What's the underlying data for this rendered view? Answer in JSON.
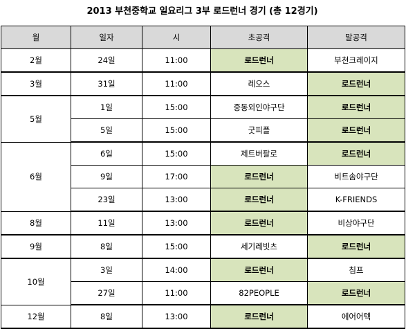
{
  "title": "2013 부천중학교 일요리그 3부 로드런너 경기 (총 12경기)",
  "headers": [
    "월",
    "일자",
    "시",
    "초공격",
    "말공격"
  ],
  "highlight_color": "#d8e4bc",
  "header_color": "#d9d9d9",
  "groups": [
    {
      "month": "2월",
      "rows": [
        {
          "day": "24일",
          "time": "11:00",
          "top": "로드런너",
          "top_hl": true,
          "bottom": "부천크레이지",
          "bottom_hl": false
        }
      ]
    },
    {
      "month": "3월",
      "rows": [
        {
          "day": "31일",
          "time": "11:00",
          "top": "레오스",
          "top_hl": false,
          "bottom": "로드런너",
          "bottom_hl": true
        }
      ]
    },
    {
      "month": "5월",
      "rows": [
        {
          "day": "1일",
          "time": "15:00",
          "top": "중동외인야구단",
          "top_hl": false,
          "bottom": "로드런너",
          "bottom_hl": true
        },
        {
          "day": "5일",
          "time": "15:00",
          "top": "굿피플",
          "top_hl": false,
          "bottom": "로드런너",
          "bottom_hl": true
        }
      ]
    },
    {
      "month": "6월",
      "rows": [
        {
          "day": "6일",
          "time": "15:00",
          "top": "제트버팔로",
          "top_hl": false,
          "bottom": "로드런너",
          "bottom_hl": true
        },
        {
          "day": "9일",
          "time": "17:00",
          "top": "로드런너",
          "top_hl": true,
          "bottom": "비트솜야구단",
          "bottom_hl": false
        },
        {
          "day": "23일",
          "time": "13:00",
          "top": "로드런너",
          "top_hl": true,
          "bottom": "K-FRIENDS",
          "bottom_hl": false
        }
      ]
    },
    {
      "month": "8월",
      "rows": [
        {
          "day": "11일",
          "time": "13:00",
          "top": "로드런너",
          "top_hl": true,
          "bottom": "비상야구단",
          "bottom_hl": false
        }
      ]
    },
    {
      "month": "9월",
      "rows": [
        {
          "day": "8일",
          "time": "15:00",
          "top": "세기레빗츠",
          "top_hl": false,
          "bottom": "로드런너",
          "bottom_hl": true
        }
      ]
    },
    {
      "month": "10월",
      "rows": [
        {
          "day": "3일",
          "time": "14:00",
          "top": "로드런너",
          "top_hl": true,
          "bottom": "침프",
          "bottom_hl": false
        },
        {
          "day": "27일",
          "time": "11:00",
          "top": "82PEOPLE",
          "top_hl": false,
          "bottom": "로드런너",
          "bottom_hl": true
        }
      ]
    },
    {
      "month": "12월",
      "rows": [
        {
          "day": "8일",
          "time": "13:00",
          "top": "로드런너",
          "top_hl": true,
          "bottom": "에어어텍",
          "bottom_hl": false
        }
      ]
    }
  ]
}
